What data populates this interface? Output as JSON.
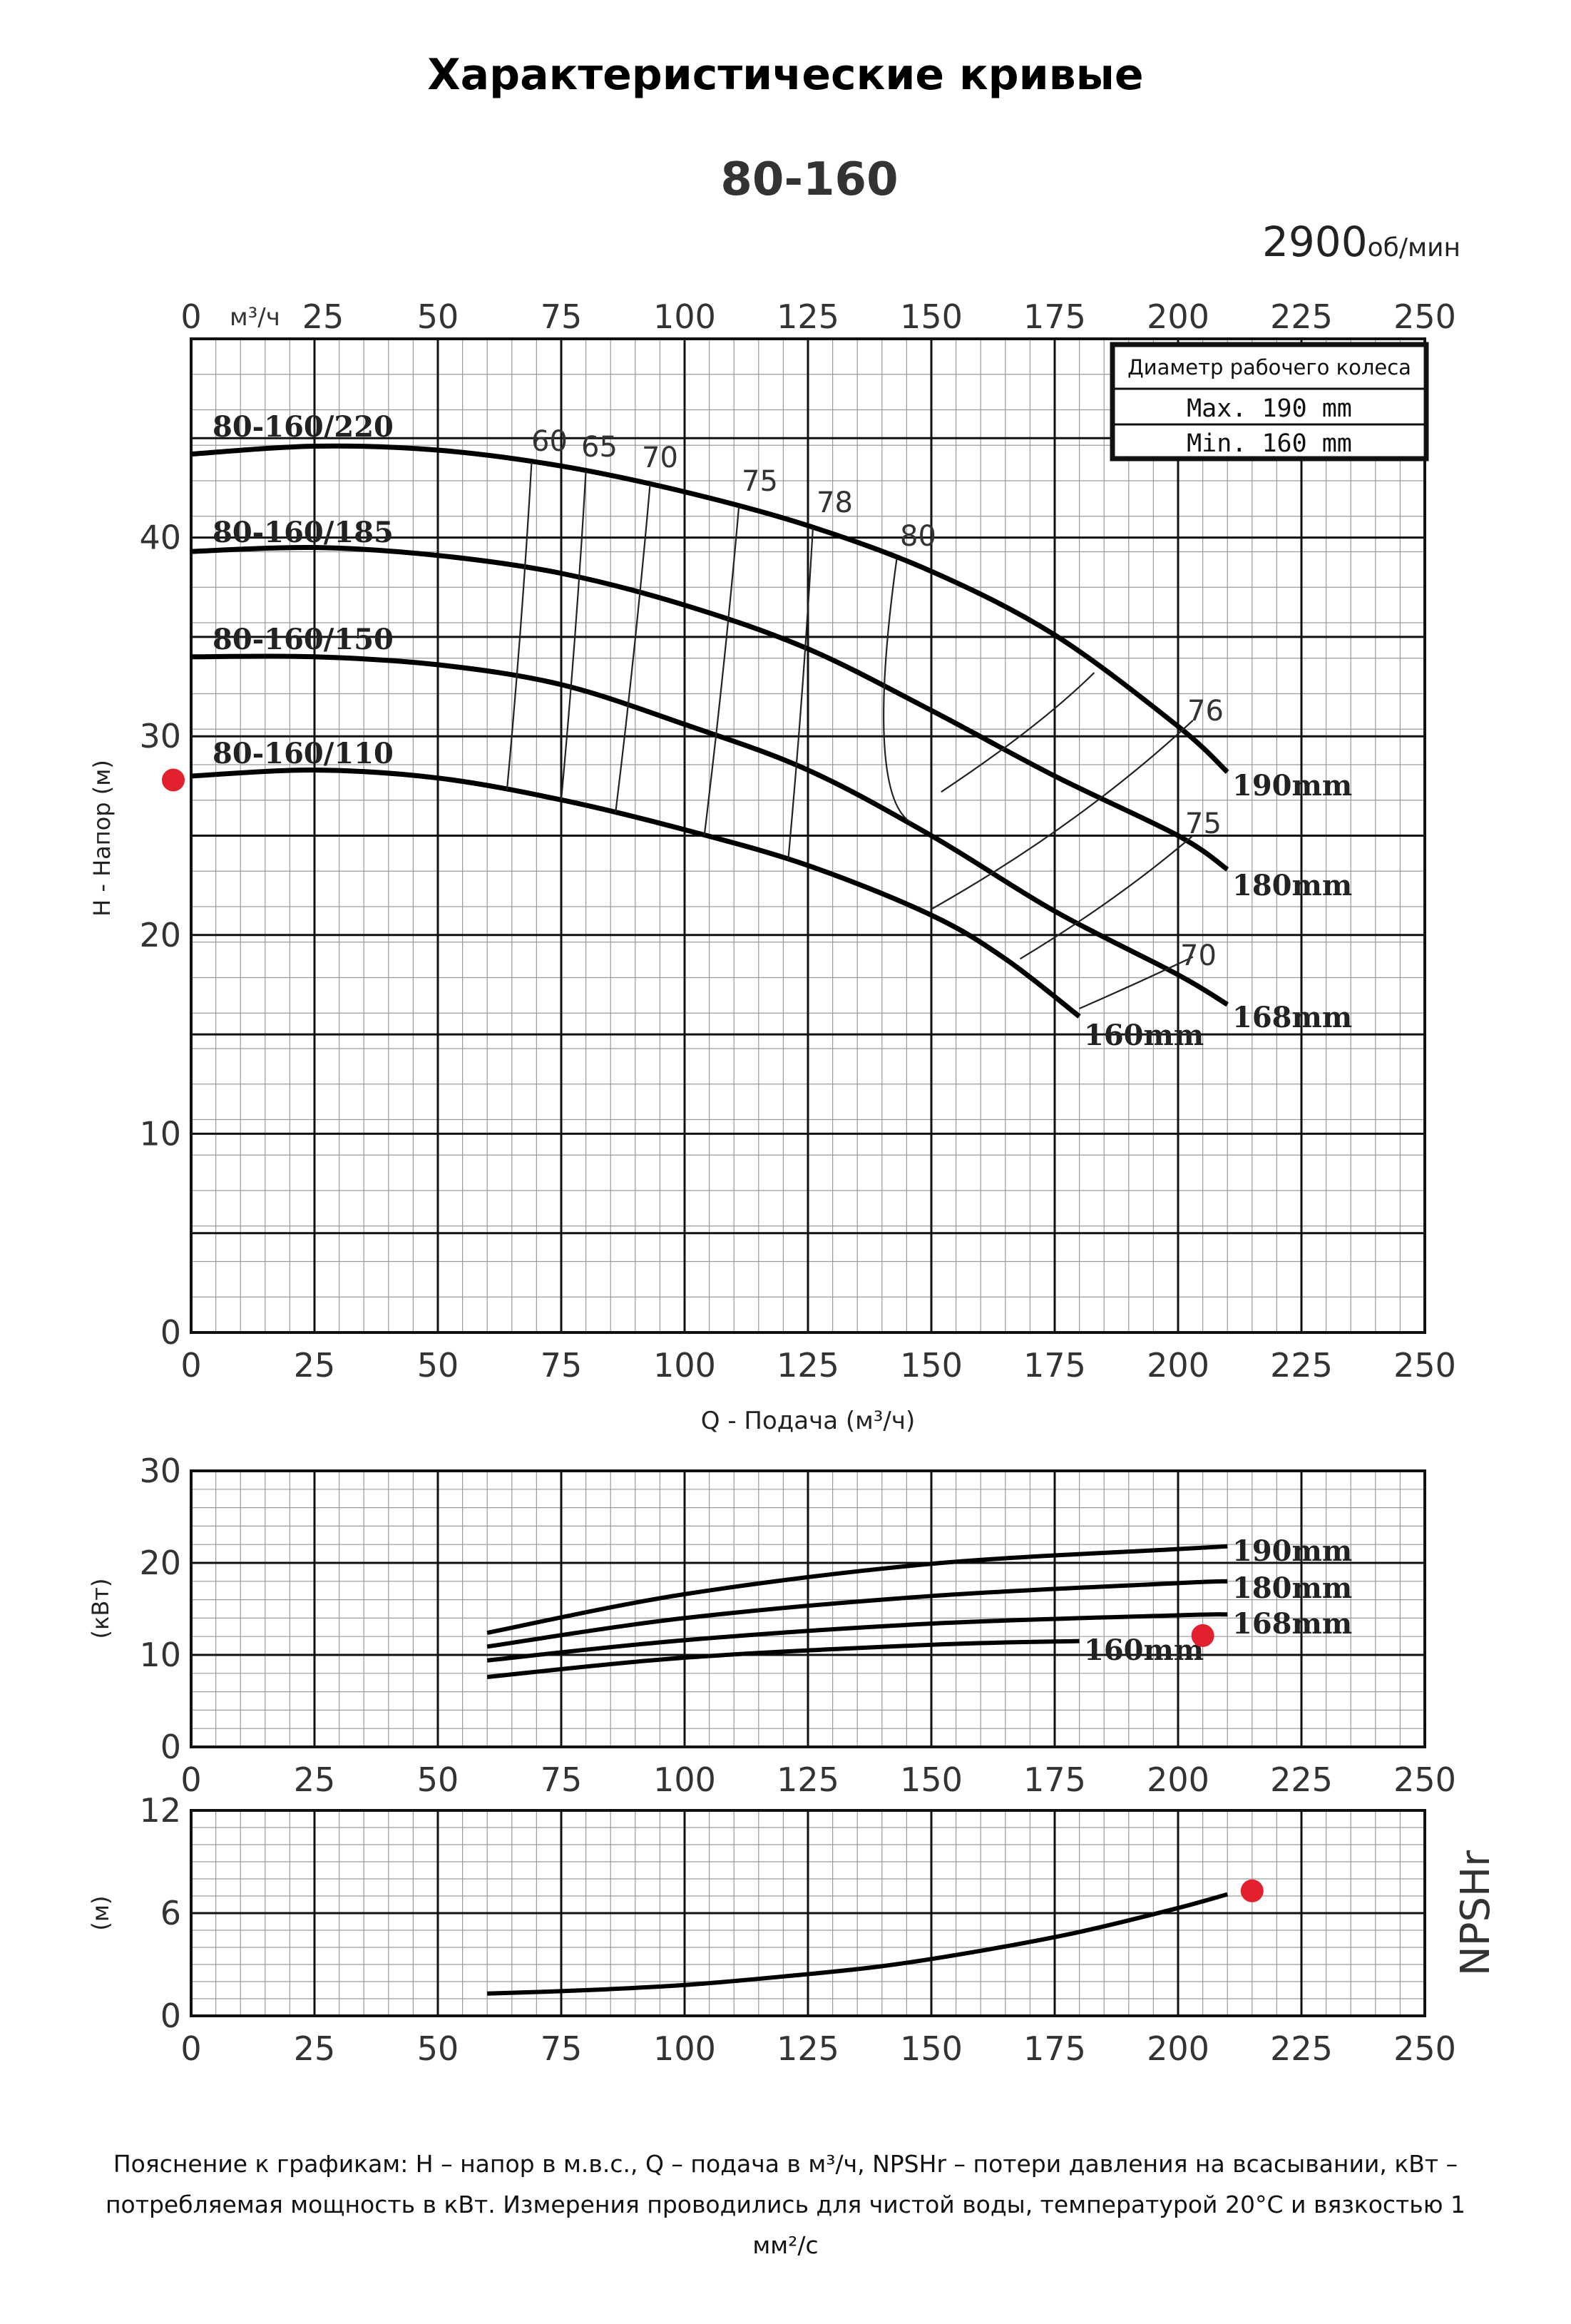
{
  "page_title": "Характеристические кривые",
  "model": "80-160",
  "speed": {
    "value": "2900",
    "unit": "об/мин"
  },
  "legend_box": {
    "title": "Диаметр рабочего колеса",
    "max": "Max.  190 mm",
    "min": "Min.  160 mm"
  },
  "footnote": "Пояснение к графикам: H – напор в м.в.с., Q – подача в м³/ч, NPSHr – потери давления на всасывании, кВт – потребляемая мощность в кВт. Измерения проводились для чистой воды, температурой 20°С и вязкостью 1 мм²/с",
  "colors": {
    "line": "#000000",
    "grid": "#9a9a9a",
    "marker": "#e3202e"
  },
  "chart_data": [
    {
      "type": "line",
      "name": "head",
      "x_ticks": [
        "0",
        "25",
        "50",
        "75",
        "100",
        "125",
        "150",
        "175",
        "200",
        "225",
        "250"
      ],
      "x_unit_top": "м³/ч",
      "xlabel": "Q - Подача (м³/ч)",
      "ylabel": "H - Напор (м)",
      "y_ticks": [
        "0",
        "10",
        "20",
        "30",
        "40"
      ],
      "xlim": [
        0,
        250
      ],
      "ylim": [
        0,
        50
      ],
      "grid": true,
      "series": [
        {
          "label": "80-160/220",
          "end_label": "190mm",
          "x": [
            0,
            25,
            50,
            75,
            100,
            125,
            150,
            175,
            200,
            210
          ],
          "y": [
            44.2,
            44.6,
            44.4,
            43.6,
            42.3,
            40.6,
            38.3,
            35.1,
            30.5,
            28.2
          ]
        },
        {
          "label": "80-160/185",
          "end_label": "180mm",
          "x": [
            0,
            25,
            50,
            75,
            100,
            125,
            150,
            175,
            200,
            210
          ],
          "y": [
            39.3,
            39.5,
            39.1,
            38.2,
            36.6,
            34.4,
            31.3,
            28.0,
            25.0,
            23.3
          ]
        },
        {
          "label": "80-160/150",
          "end_label": "168mm",
          "x": [
            0,
            25,
            50,
            75,
            100,
            125,
            150,
            175,
            200,
            210
          ],
          "y": [
            34.0,
            34.0,
            33.6,
            32.6,
            30.6,
            28.3,
            25.0,
            21.2,
            18.0,
            16.5
          ]
        },
        {
          "label": "80-160/110",
          "end_label": "160mm",
          "x": [
            0,
            25,
            50,
            75,
            100,
            125,
            150,
            165,
            180
          ],
          "y": [
            28.0,
            28.3,
            27.9,
            26.8,
            25.3,
            23.5,
            21.0,
            18.8,
            15.9
          ]
        }
      ],
      "efficiency_labels": [
        "60",
        "65",
        "70",
        "75",
        "78",
        "80",
        "76",
        "75",
        "70"
      ],
      "marker": {
        "x": -4,
        "y": 27.8
      }
    },
    {
      "type": "line",
      "name": "power",
      "ylabel": "(кВт)",
      "x_ticks": [
        "0",
        "25",
        "50",
        "75",
        "100",
        "125",
        "150",
        "175",
        "200",
        "225",
        "250"
      ],
      "y_ticks": [
        "0",
        "10",
        "20",
        "30"
      ],
      "xlim": [
        0,
        250
      ],
      "ylim": [
        0,
        30
      ],
      "grid": true,
      "series": [
        {
          "end_label": "190mm",
          "x": [
            60,
            100,
            150,
            200,
            210
          ],
          "y": [
            12.4,
            16.6,
            19.9,
            21.5,
            21.8
          ]
        },
        {
          "end_label": "180mm",
          "x": [
            60,
            100,
            150,
            200,
            210
          ],
          "y": [
            10.9,
            14.0,
            16.4,
            17.8,
            18.0
          ]
        },
        {
          "end_label": "168mm",
          "x": [
            60,
            100,
            150,
            200,
            210
          ],
          "y": [
            9.4,
            11.6,
            13.4,
            14.3,
            14.4
          ]
        },
        {
          "end_label": "160mm",
          "x": [
            60,
            100,
            150,
            180
          ],
          "y": [
            7.6,
            9.7,
            11.1,
            11.5
          ]
        }
      ],
      "marker": {
        "x": 205,
        "y": 12.1
      }
    },
    {
      "type": "line",
      "name": "npshr",
      "ylabel": "(м)",
      "side_label": "NPSHr",
      "x_ticks": [
        "0",
        "25",
        "50",
        "75",
        "100",
        "125",
        "150",
        "175",
        "200",
        "225",
        "250"
      ],
      "y_ticks": [
        "0",
        "6",
        "12"
      ],
      "xlim": [
        0,
        250
      ],
      "ylim": [
        0,
        12
      ],
      "grid": true,
      "series": [
        {
          "x": [
            60,
            80,
            100,
            120,
            140,
            160,
            180,
            200,
            210
          ],
          "y": [
            1.3,
            1.5,
            1.8,
            2.3,
            2.9,
            3.8,
            4.9,
            6.3,
            7.1
          ]
        }
      ],
      "marker": {
        "x": 215,
        "y": 7.3
      }
    }
  ]
}
